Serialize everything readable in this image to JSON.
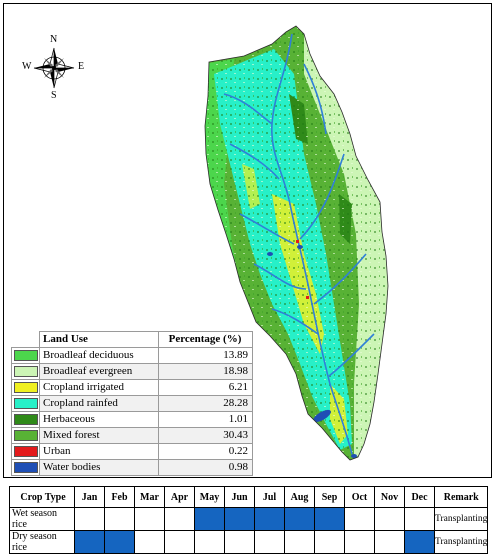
{
  "compass": {
    "n": "N",
    "s": "S",
    "e": "E",
    "w": "W"
  },
  "colors": {
    "broadleaf_deciduous": "#4cd64c",
    "broadleaf_evergreen": "#ccf5b5",
    "cropland_irrigated": "#f0f020",
    "cropland_rainfed": "#27f0c8",
    "herbaceous": "#2f8a19",
    "mixed_forest": "#58b235",
    "urban": "#e31a1c",
    "water_bodies": "#1f4fb5",
    "river": "#2f7fd8",
    "season_fill": "#1565c0"
  },
  "legend": {
    "header_label": "Land Use",
    "header_value": "Percentage (%)",
    "items": [
      {
        "label": "Broadleaf deciduous",
        "value": "13.89",
        "color": "#4cd64c"
      },
      {
        "label": "Broadleaf evergreen",
        "value": "18.98",
        "color": "#ccf5b5"
      },
      {
        "label": "Cropland irrigated",
        "value": "6.21",
        "color": "#f0f020"
      },
      {
        "label": "Cropland rainfed",
        "value": "28.28",
        "color": "#27f0c8"
      },
      {
        "label": "Herbaceous",
        "value": "1.01",
        "color": "#2f8a19"
      },
      {
        "label": "Mixed forest",
        "value": "30.43",
        "color": "#58b235"
      },
      {
        "label": "Urban",
        "value": "0.22",
        "color": "#e31a1c"
      },
      {
        "label": "Water bodies",
        "value": "0.98",
        "color": "#1f4fb5"
      }
    ]
  },
  "calendar": {
    "header": {
      "crop_type": "Crop Type",
      "months": [
        "Jan",
        "Feb",
        "Mar",
        "Apr",
        "May",
        "Jun",
        "Jul",
        "Aug",
        "Sep",
        "Oct",
        "Nov",
        "Dec"
      ],
      "remark": "Remark"
    },
    "rows": [
      {
        "crop": "Wet season rice",
        "active_months": [
          5,
          6,
          7,
          8,
          9
        ],
        "remark": "Transplanting"
      },
      {
        "crop": "Dry season rice",
        "active_months": [
          1,
          2,
          12
        ],
        "remark": "Transplanting"
      }
    ]
  }
}
